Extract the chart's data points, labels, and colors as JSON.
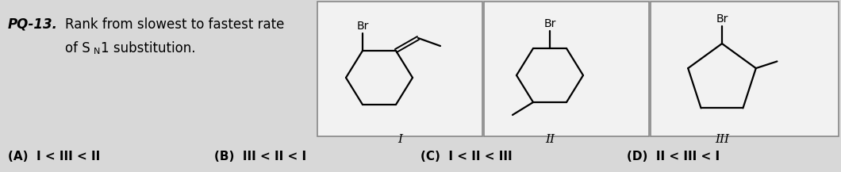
{
  "bg_color": "#d8d8d8",
  "box_bg": "#f2f2f2",
  "box_edge": "#888888",
  "figsize": [
    10.6,
    2.17
  ],
  "dpi": 100,
  "answer_a": "(A)  I < III < II",
  "answer_b": "(B)  III < II < I",
  "answer_c": "(C)  I < II < III",
  "answer_d": "(D)  II < III < I"
}
